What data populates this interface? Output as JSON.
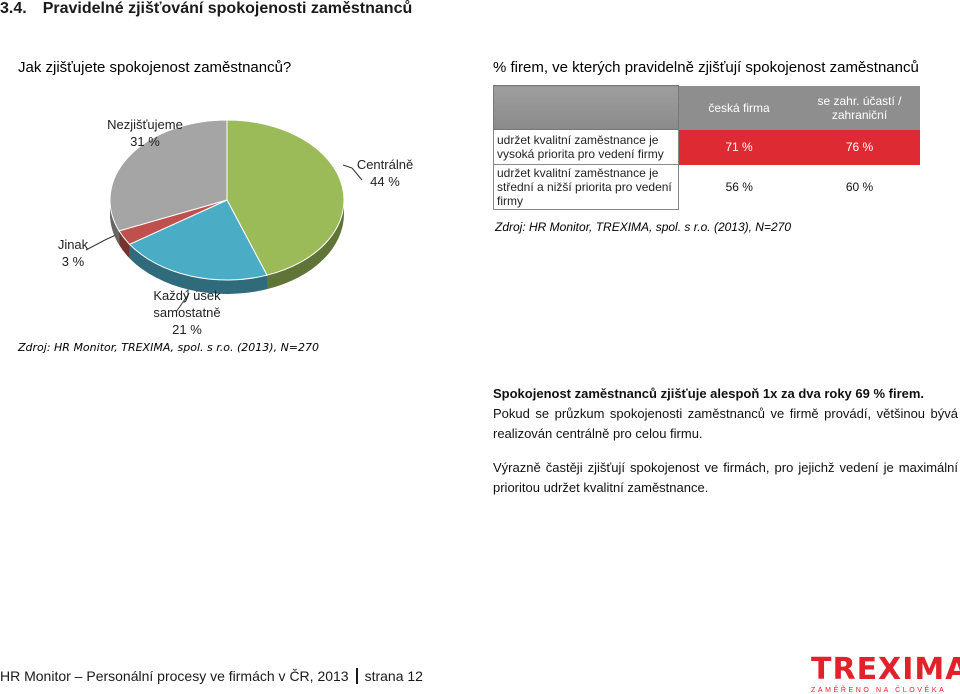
{
  "section": {
    "number": "3.4.",
    "title": "Pravidelné zjišťování spokojenosti zaměstnanců"
  },
  "left_panel": {
    "question": "Jak zjišťujete spokojenost zaměstnanců?",
    "source": "Zdroj: HR Monitor, TREXIMA, spol. s r.o. (2013), N=270"
  },
  "chart_data": {
    "type": "pie",
    "title": "Jak zjišťujete spokojenost zaměstnanců?",
    "slices": [
      {
        "label": "Centrálně",
        "value": 44,
        "value_label": "44 %",
        "color": "#9bbb59"
      },
      {
        "label": "Každý úsek samostatně",
        "label_lines": [
          "Každý úsek",
          "samostatně"
        ],
        "value": 21,
        "value_label": "21 %",
        "color": "#4bacc6"
      },
      {
        "label": "Jinak",
        "value": 3,
        "value_label": "3 %",
        "color": "#c0504d"
      },
      {
        "label": "Nezjišťujeme",
        "value": 31,
        "value_label": "31 %",
        "color": "#a5a5a5"
      }
    ]
  },
  "right_panel": {
    "title": "% firem, ve kterých pravidelně zjišťují spokojenost zaměstnanců",
    "table": {
      "col_czech": "česká firma",
      "col_foreign": "se zahr. účastí / zahraniční",
      "rows": [
        {
          "label": "udržet kvalitní zaměstnance je vysoká priorita pro vedení firmy",
          "czech": "71 %",
          "foreign": "76 %"
        },
        {
          "label": "udržet kvalitní zaměstnance je střední a nižší priorita pro vedení firmy",
          "czech": "56 %",
          "foreign": "60 %"
        }
      ]
    },
    "source": "Zdroj: HR Monitor, TREXIMA, spol. s r.o. (2013), N=270"
  },
  "paragraphs": {
    "highlight": "Spokojenost zaměstnanců zjišťuje alespoň 1x za dva roky 69 % firem.",
    "p1": "Pokud se průzkum spokojenosti zaměstnanců ve firmě provádí, většinou bývá realizován centrálně pro celou firmu.",
    "p2": "Výrazně častěji zjišťují spokojenost ve firmách, pro jejichž vedení je maximální prioritou udržet kvalitní zaměstnance."
  },
  "footer": {
    "publication": "HR Monitor – Personální procesy ve firmách v ČR, 2013",
    "page": "strana 12"
  },
  "logo": {
    "word": "TREXIMA",
    "tagline": "ZAMĚŘENO NA ČLOVĚKA"
  }
}
